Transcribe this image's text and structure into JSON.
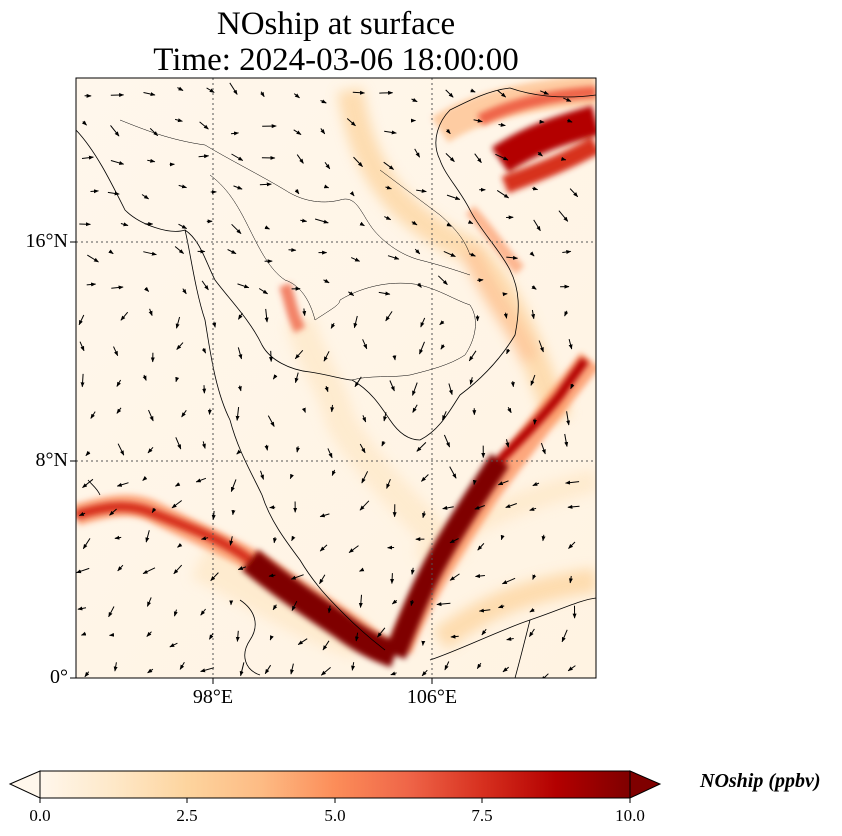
{
  "title": {
    "line1": "NOship at surface",
    "line2": "Time: 2024-03-06 18:00:00"
  },
  "map": {
    "variable": "NOship",
    "level": "surface",
    "lat_range": [
      0,
      22
    ],
    "lon_range": [
      93,
      112
    ],
    "lat_labels": [
      {
        "value": 16,
        "text": "16°N"
      },
      {
        "value": 8,
        "text": "8°N"
      },
      {
        "value": 0,
        "text": "0°"
      }
    ],
    "lon_labels": [
      {
        "value": 98,
        "text": "98°E"
      },
      {
        "value": 106,
        "text": "106°E"
      }
    ],
    "gridlines": "dotted",
    "wind_vectors": true
  },
  "colorbar": {
    "label": "NOship (ppbv)",
    "ticks": [
      "0.0",
      "2.5",
      "5.0",
      "7.5",
      "10.0"
    ],
    "min": 0,
    "max": 10,
    "colormap": "OrRd",
    "extend": "both",
    "colors": [
      "#fff7ec",
      "#fee8c8",
      "#fdd49e",
      "#fdbb84",
      "#fc8d59",
      "#ef6548",
      "#d7301f",
      "#b30000",
      "#7f0000"
    ]
  }
}
